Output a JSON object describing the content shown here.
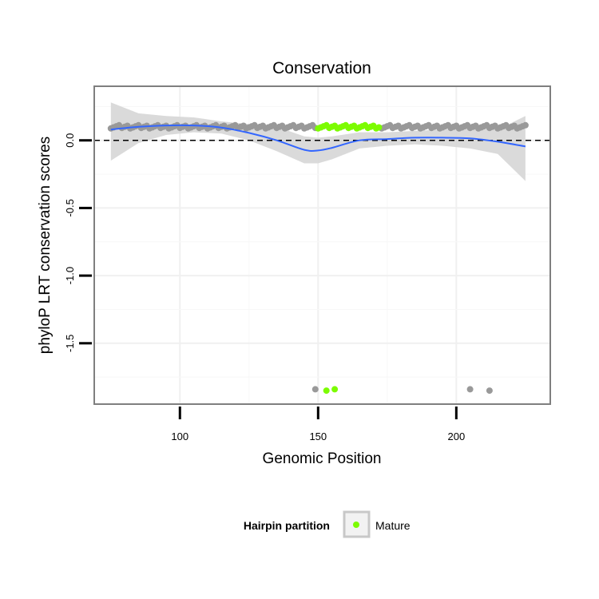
{
  "chart_data": {
    "type": "scatter",
    "title": "Conservation",
    "xlabel": "Genomic Position",
    "ylabel": "phyloP LRT conservation scores",
    "xlim": [
      69,
      234
    ],
    "ylim": [
      -1.95,
      0.4
    ],
    "x_ticks": [
      100,
      150,
      200
    ],
    "x_tick_labels": [
      "100",
      "150",
      "200"
    ],
    "y_ticks": [
      0.0,
      -0.5,
      -1.0,
      -1.5
    ],
    "y_tick_labels": [
      "0.0",
      "-0.5",
      "-1.0",
      "-1.5"
    ],
    "grid": true,
    "reference_line": {
      "y": 0,
      "style": "dashed"
    },
    "point_colors": {
      "other": "#999999",
      "Mature": "#7CFC00"
    },
    "line_color": "#3366FF",
    "ribbon_color": "#D6D6D6",
    "series": [
      {
        "group": "other",
        "points": [
          {
            "x_start": 75,
            "x_end": 149,
            "y": 0.1
          },
          {
            "x_start": 173,
            "x_end": 225,
            "y": 0.1
          }
        ],
        "outliers": [
          [
            149,
            -1.84
          ],
          [
            205,
            -1.84
          ],
          [
            212,
            -1.85
          ]
        ]
      },
      {
        "group": "Mature",
        "name": "Mature",
        "points": [
          {
            "x_start": 150,
            "x_end": 172,
            "y": 0.1
          }
        ],
        "outliers": [
          [
            153,
            -1.85
          ],
          [
            156,
            -1.84
          ]
        ]
      }
    ],
    "smooth": {
      "x": [
        75,
        85,
        95,
        105,
        115,
        125,
        135,
        145,
        150,
        155,
        165,
        175,
        185,
        195,
        205,
        215,
        225
      ],
      "y": [
        0.08,
        0.1,
        0.11,
        0.11,
        0.095,
        0.055,
        0.0,
        -0.07,
        -0.075,
        -0.055,
        0.0,
        0.01,
        0.02,
        0.02,
        0.015,
        -0.01,
        -0.045
      ],
      "lower": [
        -0.15,
        -0.02,
        0.04,
        0.06,
        0.05,
        0.0,
        -0.08,
        -0.17,
        -0.17,
        -0.14,
        -0.06,
        -0.04,
        -0.03,
        -0.04,
        -0.06,
        -0.1,
        -0.3
      ],
      "upper": [
        0.28,
        0.2,
        0.18,
        0.17,
        0.14,
        0.12,
        0.1,
        0.03,
        0.02,
        0.03,
        0.06,
        0.06,
        0.07,
        0.08,
        0.09,
        0.08,
        0.18
      ]
    },
    "legend": {
      "title": "Hairpin partition",
      "entries": [
        {
          "label": "Mature",
          "color": "#7CFC00"
        }
      ],
      "position": "bottom"
    }
  }
}
